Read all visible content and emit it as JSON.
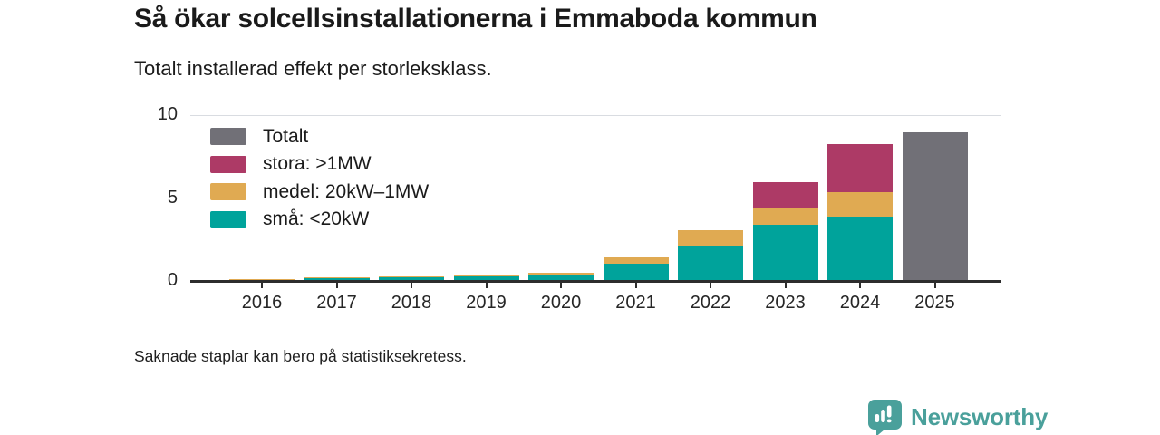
{
  "header": {
    "title": "Så ökar solcellsinstallationerna i Emmaboda kommun",
    "subtitle": "Totalt installerad effekt per storleksklass."
  },
  "legend": [
    {
      "label": "Totalt",
      "color": "#717077"
    },
    {
      "label": "stora: >1MW",
      "color": "#ad3a66"
    },
    {
      "label": "medel: 20kW–1MW",
      "color": "#e0aa52"
    },
    {
      "label": "små: <20kW",
      "color": "#00a39b"
    }
  ],
  "chart_data": {
    "type": "bar",
    "stacked": true,
    "title": "Så ökar solcellsinstallationerna i Emmaboda kommun",
    "subtitle": "Totalt installerad effekt per storleksklass.",
    "xlabel": "",
    "ylabel": "",
    "ylim": [
      0,
      10
    ],
    "yticks": [
      0,
      5,
      10
    ],
    "grid": "horizontal",
    "legend_position": "top-left-inside",
    "categories": [
      "2016",
      "2017",
      "2018",
      "2019",
      "2020",
      "2021",
      "2022",
      "2023",
      "2024",
      "2025"
    ],
    "series": [
      {
        "name": "små: <20kW",
        "color": "#00a39b",
        "values": [
          0.15,
          0.22,
          0.27,
          0.31,
          0.45,
          1.1,
          2.2,
          3.45,
          3.95,
          0
        ]
      },
      {
        "name": "medel: 20kW–1MW",
        "color": "#e0aa52",
        "values": [
          0.02,
          0.05,
          0.07,
          0.08,
          0.12,
          0.35,
          0.9,
          1.05,
          1.45,
          0
        ]
      },
      {
        "name": "stora: >1MW",
        "color": "#ad3a66",
        "values": [
          0,
          0,
          0,
          0,
          0,
          0,
          0,
          1.5,
          2.9,
          0
        ]
      },
      {
        "name": "Totalt",
        "color": "#717077",
        "values": [
          0,
          0,
          0,
          0,
          0,
          0,
          0,
          0,
          0,
          9.0
        ]
      }
    ]
  },
  "footer": {
    "note": "Saknade staplar kan bero på statistiksekretess."
  },
  "branding": {
    "name": "Newsworthy",
    "color": "#4aa09b"
  }
}
